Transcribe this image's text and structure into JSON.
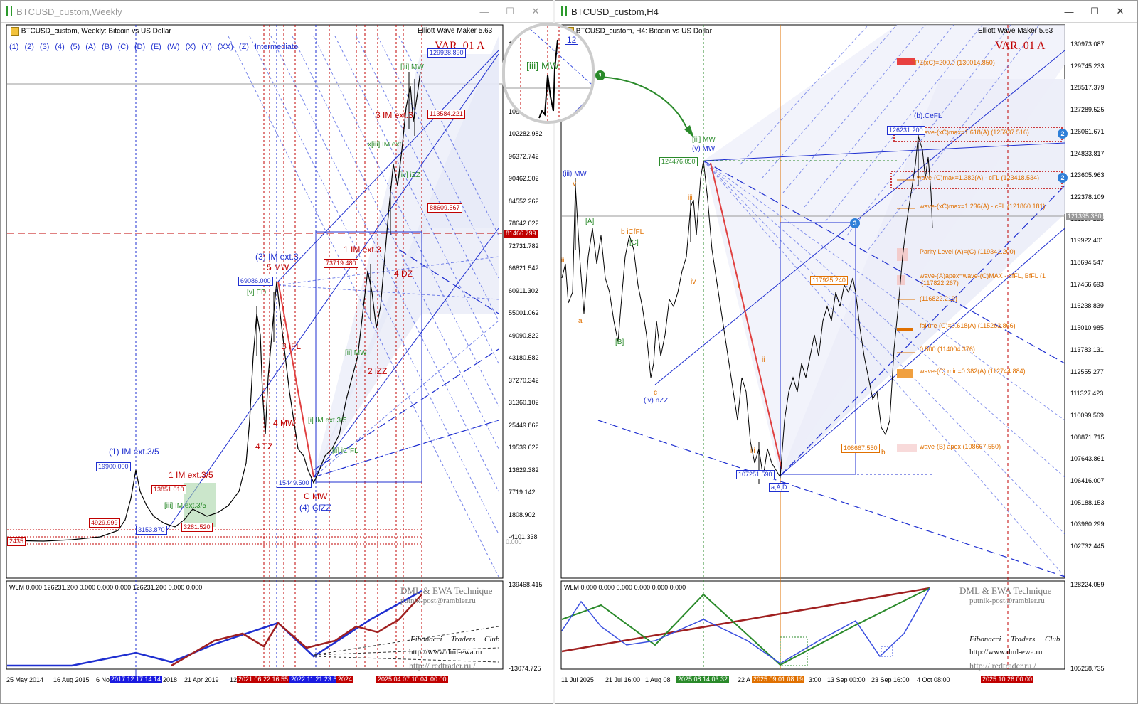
{
  "left": {
    "title": "BTCUSD_custom,Weekly",
    "info": "BTCUSD_custom, Weekly:  Bitcoin vs US Dollar",
    "ewm": "Elliott Wave Maker 5.63",
    "variant": "VAR. 01 A",
    "degrees": [
      "(1)",
      "(2)",
      "(3)",
      "(4)",
      "(5)",
      "(A)",
      "(B)",
      "(C)",
      "(D)",
      "(E)",
      "(W)",
      "(X)",
      "(Y)",
      "(XX)",
      "(Z)",
      "Intermediate"
    ],
    "price_scale": [
      "13...",
      "120...",
      "114...",
      "108193.222",
      "102282.982",
      "96372.742",
      "90462.502",
      "84552.262",
      "78642.022",
      "72731.782",
      "66821.542",
      "60911.302",
      "55001.062",
      "49090.822",
      "43180.582",
      "37270.342",
      "31360.102",
      "25449.862",
      "19539.622",
      "13629.382",
      "7719.142",
      "1808.902",
      "-4101.338",
      "139468.415",
      "-13074.725"
    ],
    "price_tags": {
      "p1": "129928.890",
      "p2": "113584.221",
      "p3": "88609.567",
      "current": "81466.799",
      "zero": "0.000"
    },
    "dates": [
      "25 May 2014",
      "16 Aug 2015",
      "6 No",
      "2018",
      "21 Apr 2019",
      "12",
      "2021.06.22 16:55",
      "2022.11.21 23:5",
      "2024",
      "2025.04.07 10:04",
      "00:00"
    ],
    "date_tag_blue": "2017.12.17 14:14",
    "wave_labels": {
      "l1": "(1) IM ext.3/5",
      "l2": "(3) IM ext.3",
      "l3": "5 MW",
      "l4": "1 IM ext.3/5",
      "l5": "[iii] IM ext.3/5",
      "l6": "C MW",
      "l7": "(4) CfZZ",
      "l8": "[iii] MW",
      "l9": "3 IM ext.3",
      "l10": "1 IM ext.3",
      "l11": "4 DZ",
      "l12": "B iFL",
      "l13": "4 MW",
      "l14": "4 TZ",
      "l15": "2 iZZ",
      "l16": "x[iii] IM ext",
      "l17": "[i] IM ext.3/5",
      "l18": "[ii] MW",
      "l19": "[v] ED",
      "l20": "[iv] iZZ",
      "l21": "[ii] iCfFL"
    },
    "boxes": {
      "b1": "19900.000",
      "b2": "13851.010",
      "b3": "4929.999",
      "b4": "3153.870",
      "b5": "3281.520",
      "b6": "69086.000",
      "b7": "73719.480",
      "b8": "15449.500",
      "b9": "2435"
    },
    "wlm_text": "WLM 0.000 126231.200 0.000 0.000 0.000 126231.200 0.000 0.000",
    "dml": "DML & EWA Technique",
    "email": "putnik-post@rambler.ru",
    "fib": [
      "Fibonacci",
      "Traders",
      "Club"
    ],
    "url": "http://www.dml-ewa.ru",
    "url2": "http://  redtrader.ru  /"
  },
  "right": {
    "title": "BTCUSD_custom,H4",
    "info": "BTCUSD_custom, H4:  Bitcoin vs US Dollar",
    "ewm": "Elliott Wave Maker 5.63",
    "variant": "VAR. 01 A",
    "price_scale": [
      "130973.087",
      "129745.233",
      "128517.379",
      "127289.525",
      "126061.671",
      "124833.817",
      "123605.963",
      "122378.109",
      "121150.255",
      "119922.401",
      "118694.547",
      "117466.693",
      "116238.839",
      "115010.985",
      "113783.131",
      "112555.277",
      "111327.423",
      "110099.569",
      "108871.715",
      "107643.861",
      "106416.007",
      "105188.153",
      "103960.299",
      "102732.445",
      "128224.059",
      "105258.735"
    ],
    "current": "121395.380",
    "dates": [
      "11 Jul 2025",
      "21 Jul 16:00",
      "1 Aug 08",
      "22 A",
      "3:00",
      "13 Sep 00:00",
      "23 Sep 16:00",
      "4 Oct 08:00"
    ],
    "date_tags": {
      "green": "2025.08.14 03:32",
      "orange": "2025.09.01 08:19",
      "red": "2025.10.26 00:00"
    },
    "levels": [
      "TPZ(xC)=200.0 (130014.850)",
      "wave-(xC)max=1.618(A) (125937.516)",
      "wave-(C)max=1.382(A) - cFL (123418.534)",
      "wave-(xC)max=1.236(A) - cFL (121860.181)",
      "Parity Level (A)=(C) (119341.200)",
      "wave-(A)apex=wave-(C)MAX - dfFL, BfFL (1",
      "(117822.267)",
      "(116822.219)",
      "failure (C)=0.618(A) (115263.866)",
      "0.500 (114004.376)",
      "wave-(C) min=0.382(A) (112744.884)",
      "wave-(B) apex (108667.550)"
    ],
    "boxes": {
      "b1": "124476.050",
      "b2": "126231.200",
      "b3": "117925.240",
      "b4": "108667.550",
      "b5": "107251.590",
      "b6": "a,A,D"
    },
    "wave_labels": {
      "w1": "[iii] MW",
      "w2": "(v) MW",
      "w3": "(iii) MW",
      "w4": "b iCfFL",
      "w5": "(iv) nZZ",
      "w6": "(b).CeFL",
      "w7": "v",
      "w8": "iii",
      "w9": "iv",
      "w10": "a",
      "w11": "c",
      "w12": "ii",
      "w13": "[A]",
      "w14": "[B]",
      "w15": "[C]",
      "w16": "b",
      "w17": "i",
      "w18": "ii",
      "w19": "iii"
    },
    "badges": [
      "1",
      "2",
      "2",
      "3"
    ],
    "zoom_label": "[iii] MW",
    "zoom_tag": "12",
    "wlm_text": "WLM 0.000 0.000 0.000 0.000 0.000 0.000",
    "dml": "DML & EWA Technique",
    "email": "putnik-post@rambler.ru",
    "fib": [
      "Fibonacci",
      "Traders",
      "Club"
    ],
    "url": "http://www.dml-ewa.ru",
    "url2": "http://  redtrader.ru  /"
  },
  "window_buttons": {
    "min": "—",
    "max": "☐",
    "close": "✕"
  }
}
